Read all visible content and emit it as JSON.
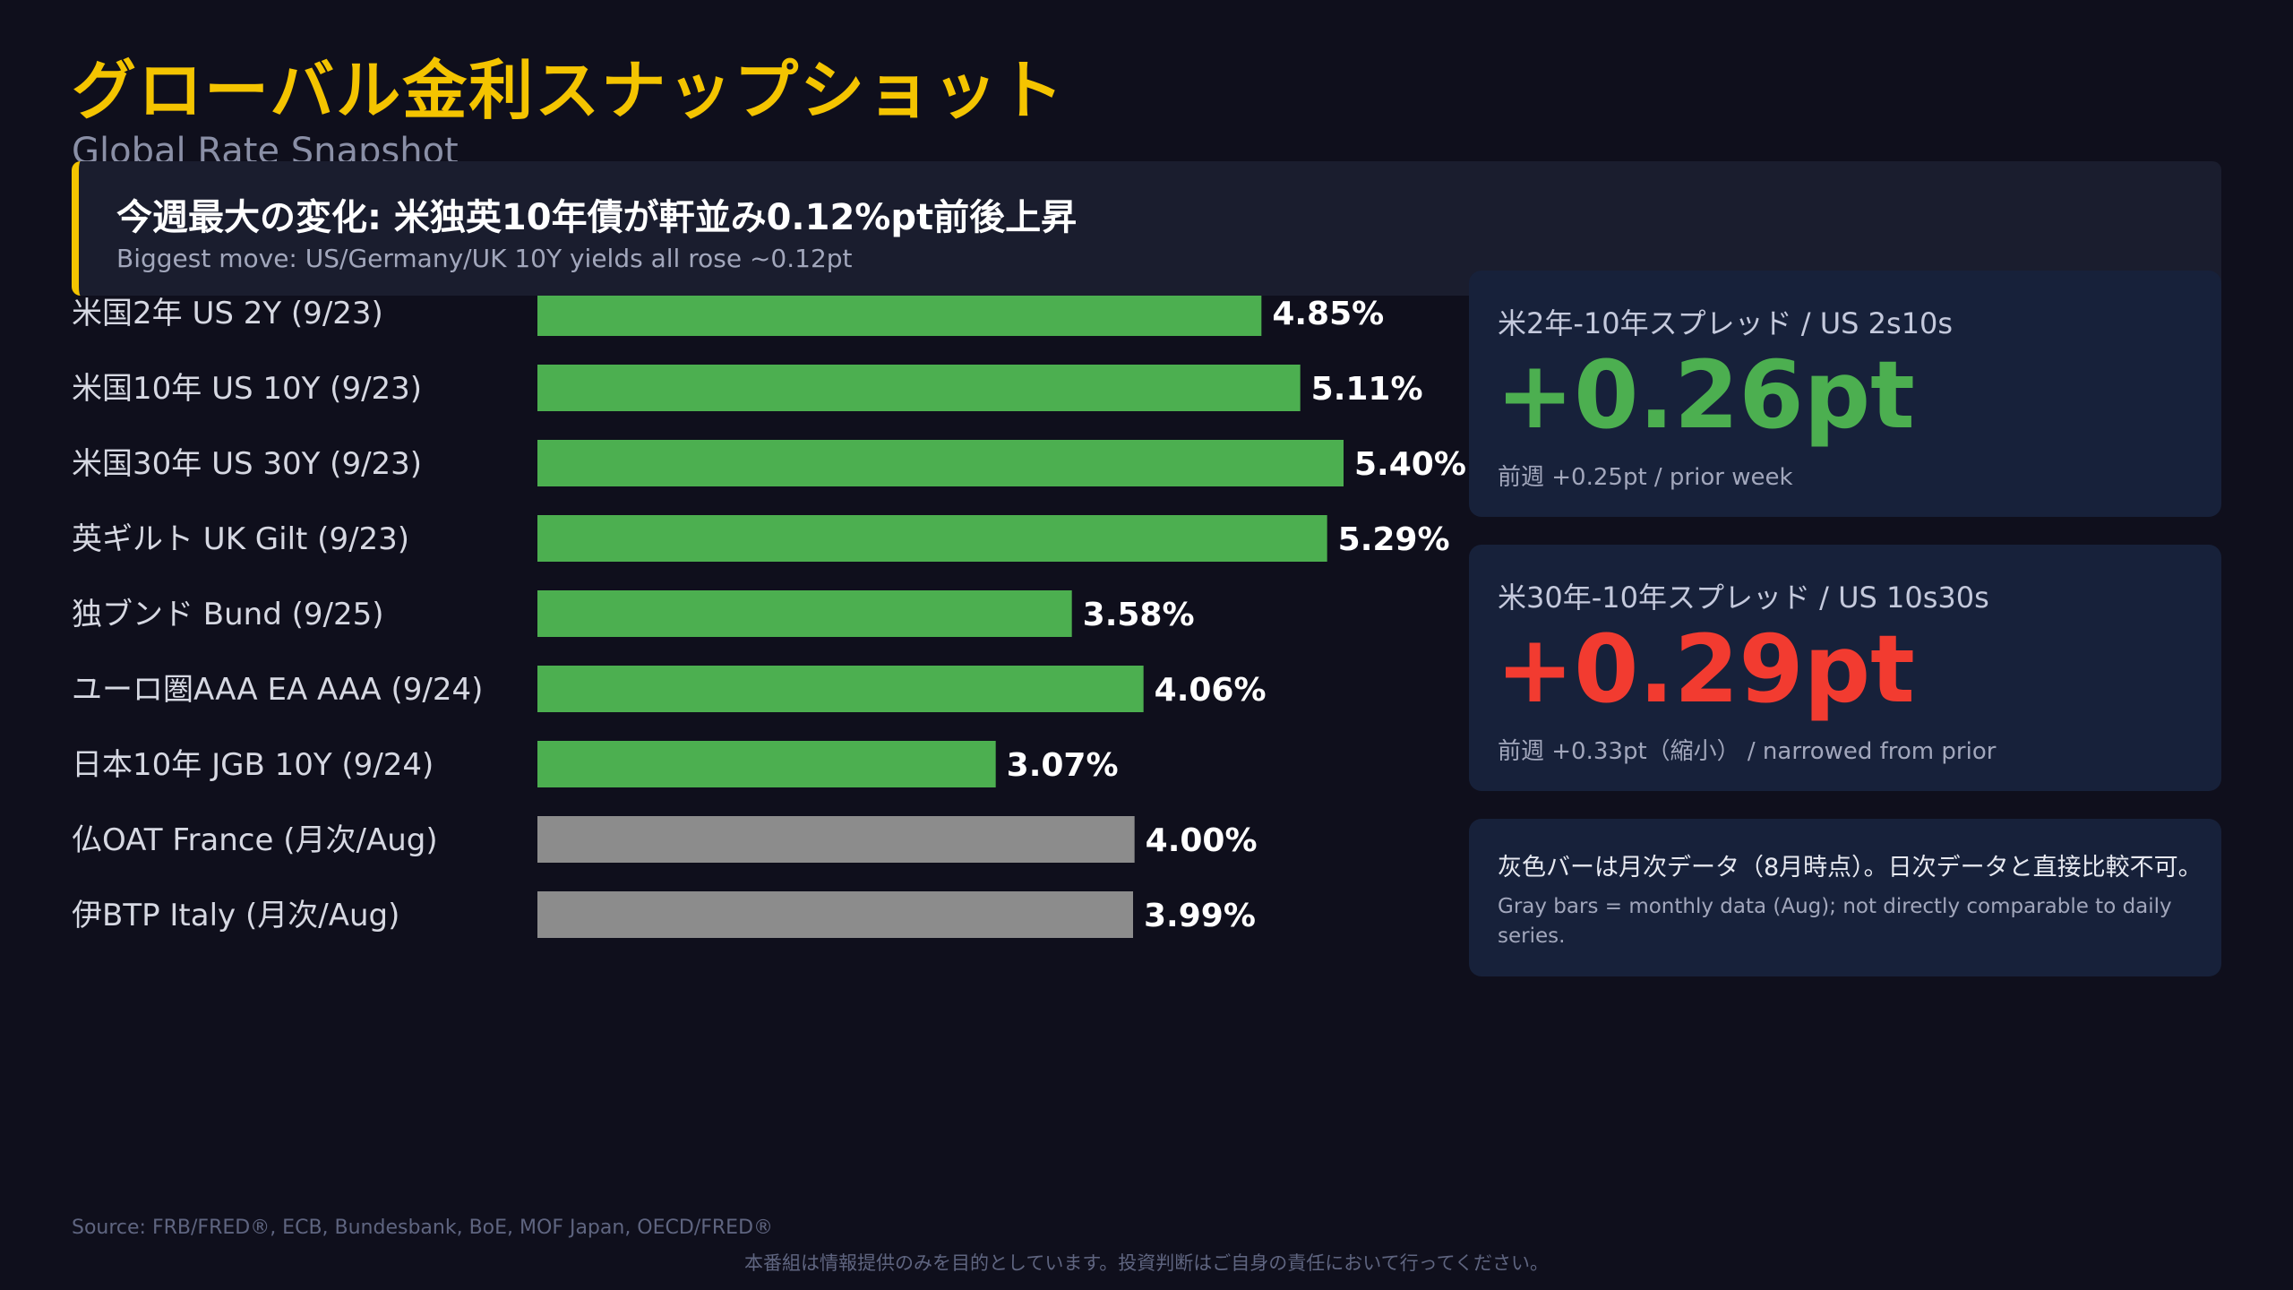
{
  "header": {
    "title": "グローバル金利スナップショット",
    "subtitle": "Global Rate Snapshot"
  },
  "banner": {
    "headline": "今週最大の変化: 米独英10年債が軒並み0.12%pt前後上昇",
    "subline": "Biggest move: US/Germany/UK 10Y yields all rose ~0.12pt"
  },
  "chart_data": {
    "type": "bar",
    "orientation": "horizontal",
    "categories": [
      "米国2年 US 2Y (9/23)",
      "米国10年 US 10Y (9/23)",
      "米国30年 US 30Y (9/23)",
      "英ギルト UK Gilt (9/23)",
      "独ブンド Bund (9/25)",
      "ユーロ圏AAA EA AAA (9/24)",
      "日本10年 JGB 10Y (9/24)",
      "仏OAT France (月次/Aug)",
      "伊BTP Italy (月次/Aug)"
    ],
    "values": [
      4.85,
      5.11,
      5.4,
      5.29,
      3.58,
      4.06,
      3.07,
      4.0,
      3.99
    ],
    "value_labels": [
      "4.85%",
      "5.11%",
      "5.40%",
      "5.29%",
      "3.58%",
      "4.06%",
      "3.07%",
      "4.00%",
      "3.99%"
    ],
    "frequency": [
      "daily",
      "daily",
      "daily",
      "daily",
      "daily",
      "daily",
      "daily",
      "monthly",
      "monthly"
    ],
    "colors": {
      "daily": "#4caf50",
      "monthly": "#8c8c8c"
    },
    "xlim": [
      0,
      5.4
    ],
    "grid": false,
    "legend": "none"
  },
  "cards": {
    "spread_2s10s": {
      "label": "米2年-10年スプレッド / US 2s10s",
      "value": "+0.26pt",
      "color": "#4caf50",
      "foot": "前週 +0.25pt / prior week"
    },
    "spread_10s30s": {
      "label": "米30年-10年スプレッド / US 10s30s",
      "value": "+0.29pt",
      "color": "#f23b30",
      "foot": "前週 +0.33pt（縮小） / narrowed from prior"
    },
    "note": {
      "main": "灰色バーは月次データ（8月時点）。日次データと直接比較不可。",
      "sub": "Gray bars = monthly data (Aug); not directly comparable to daily series."
    }
  },
  "footer": {
    "source": "Source: FRB/FRED®, ECB, Bundesbank, BoE, MOF Japan, OECD/FRED®",
    "disclaimer": "本番組は情報提供のみを目的としています。投資判断はご自身の責任において行ってください。"
  }
}
